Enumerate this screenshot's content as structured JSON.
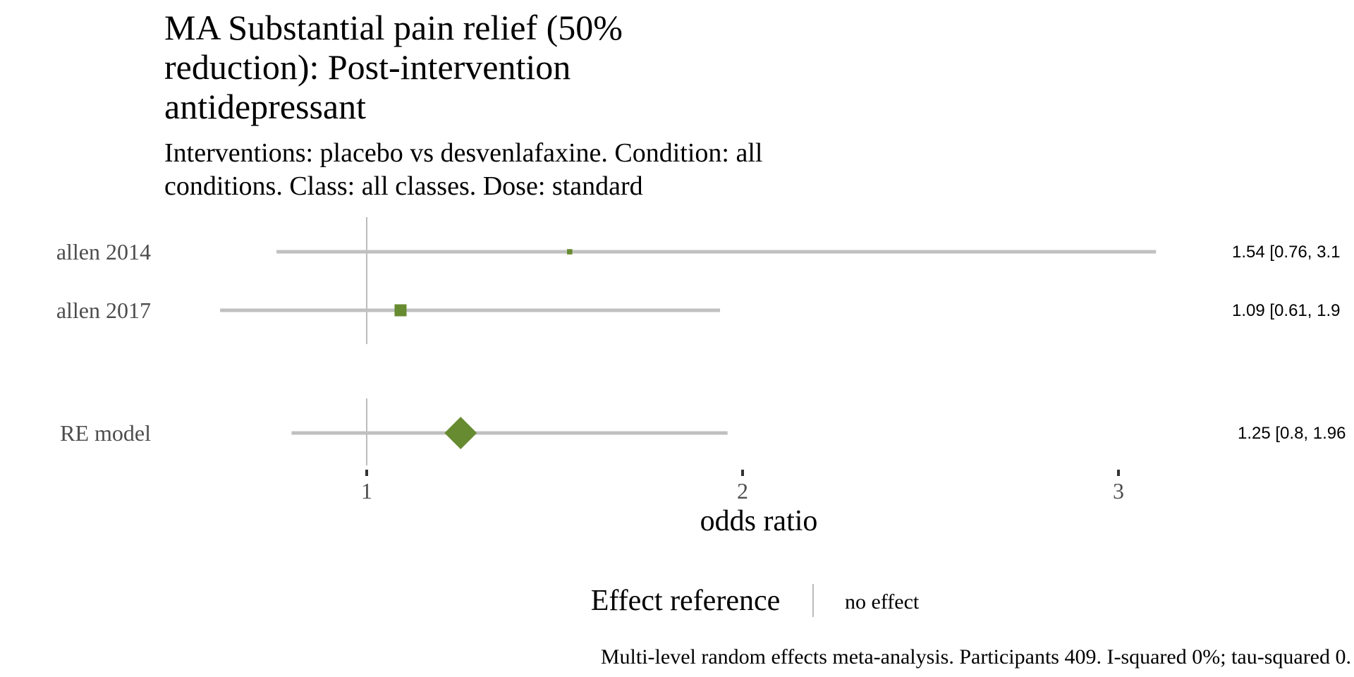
{
  "chart_data": {
    "type": "forest",
    "title": "MA Substantial pain relief (50% reduction): Post-intervention antidepressant",
    "title_lines": [
      "MA Substantial pain relief (50%",
      "reduction): Post-intervention",
      "antidepressant"
    ],
    "subtitle": "Interventions: placebo vs desvenlafaxine. Condition: all conditions. Class: all classes. Dose: standard",
    "subtitle_lines": [
      "Interventions: placebo vs desvenlafaxine. Condition: all",
      "conditions. Class: all classes. Dose: standard"
    ],
    "xlabel": "odds ratio",
    "xlim": [
      0.76,
      3.12
    ],
    "xticks": [
      1,
      2,
      3
    ],
    "xtick_labels": [
      "1",
      "2",
      "3"
    ],
    "reference_value": 1,
    "colors": {
      "point": "#678b31",
      "ci": "#c0c0c0",
      "reference": "#a6a6a6",
      "tick": "#333333"
    },
    "studies": [
      {
        "name": "allen 2014",
        "estimate": 1.54,
        "ci_low": 0.76,
        "ci_high": 3.1,
        "weight": 0.14,
        "label": "1.54 [0.76, 3.1"
      },
      {
        "name": "allen 2017",
        "estimate": 1.09,
        "ci_low": 0.61,
        "ci_high": 1.94,
        "weight": 1.0,
        "label": "1.09 [0.61, 1.9"
      }
    ],
    "pooled": {
      "name": "RE model",
      "estimate": 1.25,
      "ci_low": 0.8,
      "ci_high": 1.96,
      "label": "1.25 [0.8, 1.96"
    },
    "legend": {
      "title": "Effect reference",
      "item_label": "no effect",
      "placement": "bottom"
    },
    "caption": "Multi-level random effects meta-analysis. Participants 409. I-squared 0%; tau-squared 0."
  }
}
